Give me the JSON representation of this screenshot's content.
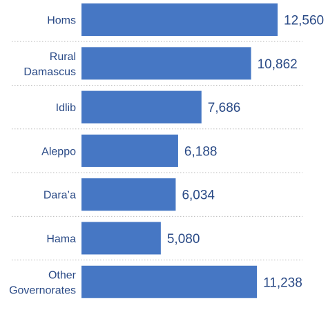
{
  "chart_data": {
    "type": "bar",
    "orientation": "horizontal",
    "categories": [
      [
        "Homs"
      ],
      [
        "Rural",
        "Damascus"
      ],
      [
        "Idlib"
      ],
      [
        "Aleppo"
      ],
      [
        "Dara’a"
      ],
      [
        "Hama"
      ],
      [
        "Other",
        "Governorates"
      ]
    ],
    "values": [
      12560,
      10862,
      7686,
      6188,
      6034,
      5080,
      11238
    ],
    "value_labels": [
      "12,560",
      "10,862",
      "7,686",
      "6,188",
      "6,034",
      "5,080",
      "11,238"
    ],
    "title": "",
    "xlabel": "",
    "ylabel": "",
    "xlim": [
      0,
      12560
    ],
    "grid": false,
    "legend": "none",
    "colors": {
      "bar": "#4677c4",
      "label": "#2a4a86",
      "separator": "#b9b9b9"
    }
  }
}
